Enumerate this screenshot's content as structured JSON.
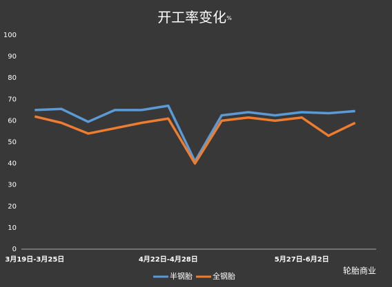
{
  "chart_data": {
    "type": "line",
    "title": "开工率变化",
    "title_unit": "%",
    "categories": [
      "3月19日-3月25日",
      null,
      null,
      null,
      null,
      "4月22日-4月28日",
      null,
      null,
      null,
      null,
      "5月27日-6月2日",
      null,
      null
    ],
    "series": [
      {
        "name": "半钢胎",
        "color": "#5b9bd5",
        "values": [
          65,
          65.5,
          59.5,
          65,
          65,
          67,
          41,
          62.5,
          64,
          62.5,
          64,
          63.5,
          64.5
        ]
      },
      {
        "name": "全钢胎",
        "color": "#ed7d31",
        "values": [
          62,
          59,
          54,
          56.5,
          59,
          61,
          40,
          60,
          61.5,
          60,
          61.5,
          53,
          59
        ]
      }
    ],
    "ylim": [
      0,
      100
    ],
    "yticks": [
      0,
      10,
      20,
      30,
      40,
      50,
      60,
      70,
      80,
      90,
      100
    ],
    "legend": "bottom",
    "grid": false,
    "watermark": "轮胎商业"
  }
}
